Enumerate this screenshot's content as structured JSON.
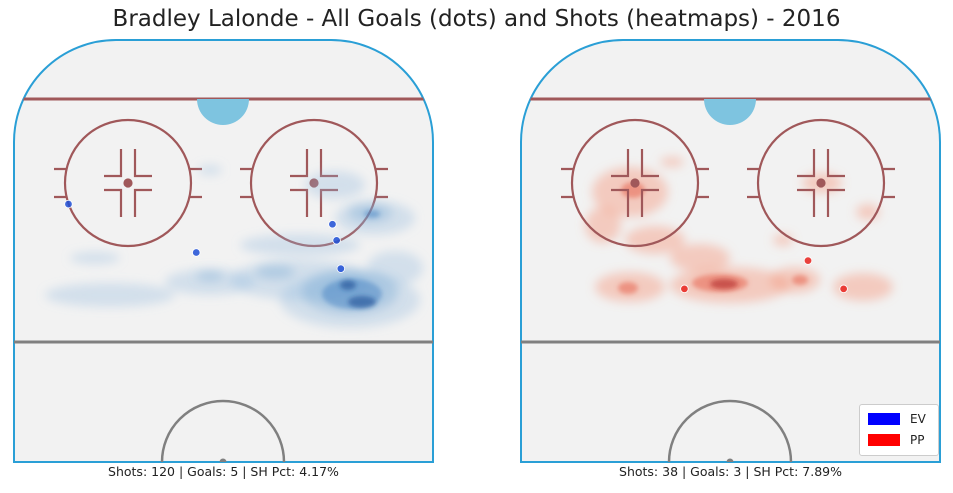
{
  "title": "Bradley Lalonde - All Goals (dots) and Shots (heatmaps) - 2016",
  "panels": [
    {
      "caption": "Shots: 120 | Goals: 5 | SH Pct: 4.17%",
      "strength": "EV",
      "color": "#1f5fbf"
    },
    {
      "caption": "Shots: 38 | Goals: 3 | SH Pct: 7.89%",
      "strength": "PP",
      "color": "#e8412c"
    }
  ],
  "legend": {
    "placement": "bottom-right",
    "entries": [
      {
        "label": "EV",
        "color": "#0000ff"
      },
      {
        "label": "PP",
        "color": "#ff0000"
      }
    ]
  },
  "chart_data": [
    {
      "type": "heatmap",
      "series": [
        {
          "name": "EV",
          "goals": [
            [
              -74,
              26
            ],
            [
              -13,
              38
            ],
            [
              52,
              31
            ],
            [
              54,
              35
            ],
            [
              56,
              42
            ]
          ]
        }
      ]
    },
    {
      "type": "heatmap",
      "series": [
        {
          "name": "PP",
          "goals": [
            [
              -22,
              47
            ],
            [
              54,
              47
            ],
            [
              37,
              40
            ]
          ]
        }
      ]
    }
  ]
}
